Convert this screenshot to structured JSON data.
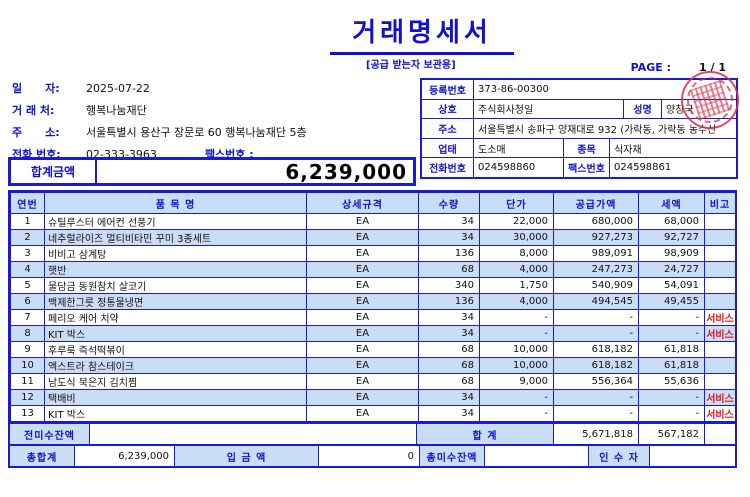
{
  "page": {
    "title": "거래명세서",
    "subtitle": "[공급 받는자 보관용]",
    "page_label": "PAGE :",
    "page_value": "1 / 1"
  },
  "buyer": {
    "date_label": "일      자:",
    "date": "2025-07-22",
    "client_label": "거 래 처:",
    "client": "행복나눔재단",
    "address_label": "주      소:",
    "address": "서울특별시 용산구 장문로 60 행복나눔재단 5층",
    "phone_label": "전화 번호:",
    "phone": "02-333-3963",
    "fax_label": "팩스번호 :",
    "fax": ""
  },
  "supplier": {
    "reg_no_label": "등록번호",
    "reg_no": "373-86-00300",
    "company_label": "상호",
    "company": "주식회사청일",
    "ceo_label": "성명",
    "ceo": "양창국",
    "address_label": "주소",
    "address": "서울특별시 송파구 양재대로 932 (가락동, 가락동 농수산",
    "biz_type_label": "업태",
    "biz_type": "도소매",
    "biz_item_label": "종목",
    "biz_item": "식자재",
    "phone_label": "전화번호",
    "phone": "024598860",
    "fax_label": "팩스번호",
    "fax": "024598861"
  },
  "total_box": {
    "label": "합계금액",
    "value": "6,239,000"
  },
  "table": {
    "headers": [
      "연번",
      "품 목 명",
      "상세규격",
      "수량",
      "단가",
      "공급가액",
      "세액",
      "비고"
    ],
    "rows": [
      {
        "no": "1",
        "name": "슈틸루스터 에어컨 선풍기",
        "spec": "EA",
        "qty": "34",
        "unit_price": "22,000",
        "supply": "680,000",
        "tax": "68,000",
        "note": ""
      },
      {
        "no": "2",
        "name": "네추럴라이즈 멀티비타민 꾸미 3종세트",
        "spec": "EA",
        "qty": "34",
        "unit_price": "30,000",
        "supply": "927,273",
        "tax": "92,727",
        "note": ""
      },
      {
        "no": "3",
        "name": "비비고 삼계탕",
        "spec": "EA",
        "qty": "136",
        "unit_price": "8,000",
        "supply": "989,091",
        "tax": "98,909",
        "note": ""
      },
      {
        "no": "4",
        "name": "햇반",
        "spec": "EA",
        "qty": "68",
        "unit_price": "4,000",
        "supply": "247,273",
        "tax": "24,727",
        "note": ""
      },
      {
        "no": "5",
        "name": "물담금 동원참치 살코기",
        "spec": "EA",
        "qty": "340",
        "unit_price": "1,750",
        "supply": "540,909",
        "tax": "54,091",
        "note": ""
      },
      {
        "no": "6",
        "name": "백제한그릇 정통물냉면",
        "spec": "EA",
        "qty": "136",
        "unit_price": "4,000",
        "supply": "494,545",
        "tax": "49,455",
        "note": ""
      },
      {
        "no": "7",
        "name": "페리오 케어 치약",
        "spec": "EA",
        "qty": "34",
        "unit_price": "-",
        "supply": "-",
        "tax": "-",
        "note": "서비스"
      },
      {
        "no": "8",
        "name": "KIT 박스",
        "spec": "EA",
        "qty": "34",
        "unit_price": "-",
        "supply": "-",
        "tax": "-",
        "note": "서비스"
      },
      {
        "no": "9",
        "name": "후루룩 즉석떡볶이",
        "spec": "EA",
        "qty": "68",
        "unit_price": "10,000",
        "supply": "618,182",
        "tax": "61,818",
        "note": ""
      },
      {
        "no": "10",
        "name": "엑스트라 참스테이크",
        "spec": "EA",
        "qty": "68",
        "unit_price": "10,000",
        "supply": "618,182",
        "tax": "61,818",
        "note": ""
      },
      {
        "no": "11",
        "name": "남도식 묵은지 김치찜",
        "spec": "EA",
        "qty": "68",
        "unit_price": "9,000",
        "supply": "556,364",
        "tax": "55,636",
        "note": ""
      },
      {
        "no": "12",
        "name": "택배비",
        "spec": "EA",
        "qty": "34",
        "unit_price": "-",
        "supply": "-",
        "tax": "-",
        "note": "서비스"
      },
      {
        "no": "13",
        "name": "KIT 박스",
        "spec": "EA",
        "qty": "34",
        "unit_price": "-",
        "supply": "-",
        "tax": "-",
        "note": "서비스"
      }
    ]
  },
  "footer": {
    "prev_balance_label": "전미수잔액",
    "prev_balance": "",
    "subtotal_label": "합   계",
    "subtotal_supply": "5,671,818",
    "subtotal_tax": "567,182",
    "grand_total_label": "총합계",
    "grand_total": "6,239,000",
    "deposit_label": "입 금 액",
    "deposit": "0",
    "outstanding_label": "총미수잔액",
    "outstanding": "",
    "receiver_label": "인 수 자",
    "receiver": ""
  },
  "icons": {
    "company_seal": "red-circular-seal-stamp"
  },
  "colors": {
    "accent_blue": "#1212cc",
    "fill_light_blue": "#c9def5",
    "service_red": "#e01818",
    "seal_red": "#d72d46"
  }
}
